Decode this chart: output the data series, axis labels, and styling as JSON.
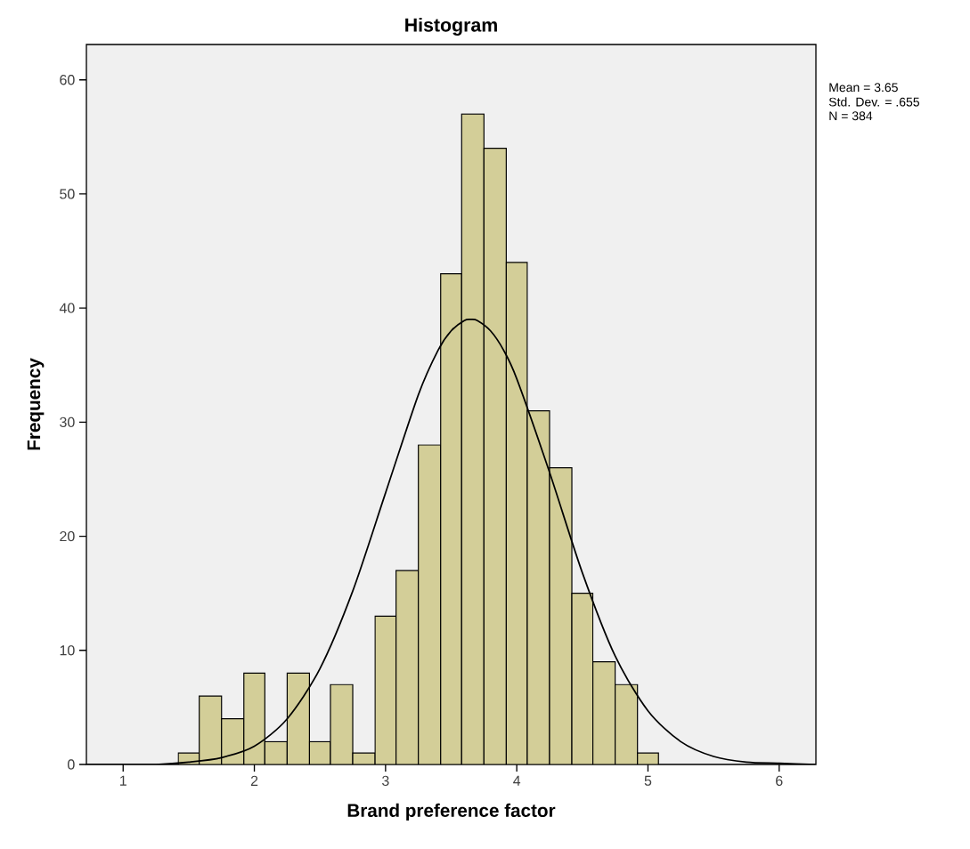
{
  "chart_data": {
    "type": "histogram",
    "title": "Histogram",
    "xlabel": "Brand preference factor",
    "ylabel": "Frequency",
    "bins": [
      1.42,
      1.58,
      1.75,
      1.92,
      2.08,
      2.25,
      2.42,
      2.58,
      2.75,
      2.92,
      3.08,
      3.25,
      3.42,
      3.58,
      3.75,
      3.92,
      4.08,
      4.25,
      4.42,
      4.58,
      4.75,
      4.92,
      5.08
    ],
    "values": [
      1,
      6,
      4,
      8,
      2,
      8,
      2,
      7,
      1,
      13,
      17,
      28,
      43,
      57,
      54,
      44,
      31,
      26,
      15,
      9,
      7,
      1
    ],
    "color": "#d3ce98",
    "series": [
      {
        "type": "line",
        "color": "#000000",
        "x": [
          0.72,
          1.0,
          1.25,
          1.5,
          1.75,
          2.0,
          2.25,
          2.5,
          2.75,
          3.0,
          3.25,
          3.4,
          3.5,
          3.6,
          3.65,
          3.7,
          3.8,
          3.9,
          4.0,
          4.25,
          4.5,
          4.75,
          5.0,
          5.25,
          5.5,
          5.75,
          6.0,
          6.28
        ],
        "values": [
          0.0,
          0.0,
          0.0,
          0.2,
          0.6,
          1.6,
          4.0,
          8.4,
          15.2,
          23.8,
          32.4,
          36.3,
          38.0,
          38.9,
          39.0,
          38.9,
          38.0,
          36.3,
          33.8,
          25.6,
          16.8,
          9.5,
          4.7,
          2.0,
          0.7,
          0.2,
          0.1,
          0.0
        ]
      }
    ],
    "annotations": [
      "Mean = 3.65",
      "Std. Dev. = .655",
      "N = 384"
    ],
    "xlim": [
      0.72,
      6.28
    ],
    "ylim": [
      0,
      63.1
    ],
    "xticks": [
      1,
      2,
      3,
      4,
      5,
      6
    ],
    "yticks": [
      0,
      10,
      20,
      30,
      40,
      50,
      60
    ],
    "grid": false
  }
}
